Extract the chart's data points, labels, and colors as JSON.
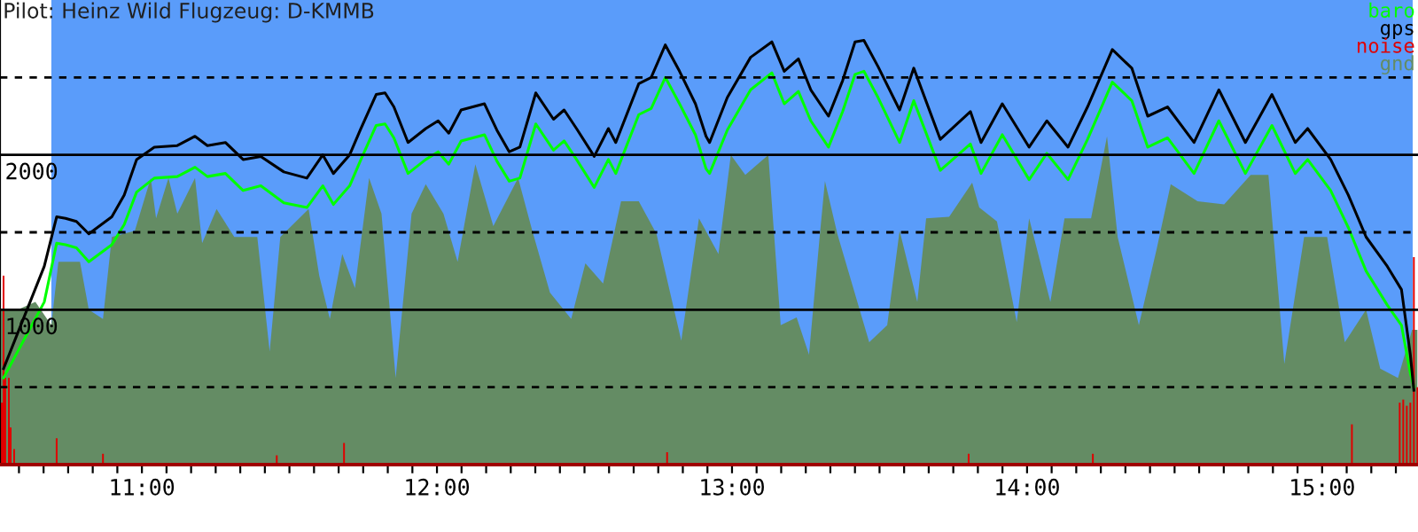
{
  "chart_data": {
    "type": "line",
    "title": "Pilot: Heinz Wild Flugzeug: D-KMMB",
    "xlim": [
      10.519,
      15.325
    ],
    "ylim": [
      0,
      3000
    ],
    "yticks": [
      {
        "value": 500,
        "label": null
      },
      1000,
      {
        "value": 1500,
        "label": null
      },
      2000,
      {
        "value": 2500,
        "label": null
      }
    ],
    "xticks": [
      {
        "value": 10.5833,
        "label": null
      },
      {
        "value": 10.6667,
        "label": null
      },
      {
        "value": 10.75,
        "label": null
      },
      {
        "value": 10.8333,
        "label": null
      },
      {
        "value": 10.9167,
        "label": null
      },
      {
        "value": 11,
        "label": "11:00"
      },
      {
        "value": 11.0833,
        "label": null
      },
      {
        "value": 11.1667,
        "label": null
      },
      {
        "value": 11.25,
        "label": null
      },
      {
        "value": 11.3333,
        "label": null
      },
      {
        "value": 11.4167,
        "label": null
      },
      {
        "value": 11.5,
        "label": null
      },
      {
        "value": 11.5833,
        "label": null
      },
      {
        "value": 11.6667,
        "label": null
      },
      {
        "value": 11.75,
        "label": null
      },
      {
        "value": 11.8333,
        "label": null
      },
      {
        "value": 11.9167,
        "label": null
      },
      {
        "value": 12,
        "label": "12:00"
      },
      {
        "value": 12.0833,
        "label": null
      },
      {
        "value": 12.1667,
        "label": null
      },
      {
        "value": 12.25,
        "label": null
      },
      {
        "value": 12.3333,
        "label": null
      },
      {
        "value": 12.4167,
        "label": null
      },
      {
        "value": 12.5,
        "label": null
      },
      {
        "value": 12.5833,
        "label": null
      },
      {
        "value": 12.6667,
        "label": null
      },
      {
        "value": 12.75,
        "label": null
      },
      {
        "value": 12.8333,
        "label": null
      },
      {
        "value": 12.9167,
        "label": null
      },
      {
        "value": 13,
        "label": "13:00"
      },
      {
        "value": 13.0833,
        "label": null
      },
      {
        "value": 13.1667,
        "label": null
      },
      {
        "value": 13.25,
        "label": null
      },
      {
        "value": 13.3333,
        "label": null
      },
      {
        "value": 13.4167,
        "label": null
      },
      {
        "value": 13.5,
        "label": null
      },
      {
        "value": 13.5833,
        "label": null
      },
      {
        "value": 13.6667,
        "label": null
      },
      {
        "value": 13.75,
        "label": null
      },
      {
        "value": 13.8333,
        "label": null
      },
      {
        "value": 13.9167,
        "label": null
      },
      {
        "value": 14,
        "label": "14:00"
      },
      {
        "value": 14.0833,
        "label": null
      },
      {
        "value": 14.1667,
        "label": null
      },
      {
        "value": 14.25,
        "label": null
      },
      {
        "value": 14.3333,
        "label": null
      },
      {
        "value": 14.4167,
        "label": null
      },
      {
        "value": 14.5,
        "label": null
      },
      {
        "value": 14.5833,
        "label": null
      },
      {
        "value": 14.6667,
        "label": null
      },
      {
        "value": 14.75,
        "label": null
      },
      {
        "value": 14.8333,
        "label": null
      },
      {
        "value": 14.9167,
        "label": null
      },
      {
        "value": 15,
        "label": "15:00"
      },
      {
        "value": 15.0833,
        "label": null
      },
      {
        "value": 15.1667,
        "label": null
      },
      {
        "value": 15.25,
        "label": null
      }
    ],
    "grid": "y",
    "legend": "top right",
    "bands": [
      {
        "axis": "x",
        "from": 10.693,
        "to": 15.307,
        "label": null,
        "color": "#5a9cfa"
      }
    ],
    "series": [
      {
        "name": "baro",
        "type": "line",
        "color": "#00ff00",
        "x": [
          10.531,
          10.669,
          10.711,
          10.741,
          10.778,
          10.82,
          10.898,
          10.94,
          10.982,
          11.042,
          11.12,
          11.18,
          11.222,
          11.283,
          11.343,
          11.403,
          11.481,
          11.559,
          11.613,
          11.649,
          11.704,
          11.74,
          11.794,
          11.824,
          11.854,
          11.902,
          11.962,
          12.004,
          12.04,
          12.082,
          12.161,
          12.203,
          12.245,
          12.281,
          12.335,
          12.395,
          12.431,
          12.473,
          12.533,
          12.581,
          12.606,
          12.684,
          12.726,
          12.774,
          12.822,
          12.876,
          12.912,
          12.924,
          12.984,
          13.063,
          13.135,
          13.177,
          13.225,
          13.267,
          13.327,
          13.375,
          13.417,
          13.447,
          13.495,
          13.568,
          13.616,
          13.706,
          13.808,
          13.844,
          13.916,
          14.007,
          14.067,
          14.139,
          14.205,
          14.289,
          14.355,
          14.409,
          14.476,
          14.566,
          14.65,
          14.74,
          14.83,
          14.909,
          14.951,
          15.029,
          15.089,
          15.149,
          15.221,
          15.269,
          15.299,
          15.311
        ],
        "values": [
          560,
          1050,
          1430,
          1420,
          1400,
          1310,
          1420,
          1550,
          1760,
          1850,
          1860,
          1920,
          1860,
          1880,
          1770,
          1800,
          1690,
          1660,
          1800,
          1680,
          1800,
          1960,
          2190,
          2200,
          2110,
          1880,
          1970,
          2020,
          1940,
          2090,
          2130,
          1960,
          1830,
          1850,
          2200,
          2030,
          2090,
          1970,
          1790,
          1970,
          1880,
          2260,
          2300,
          2500,
          2330,
          2130,
          1910,
          1880,
          2160,
          2420,
          2530,
          2330,
          2410,
          2220,
          2050,
          2280,
          2520,
          2540,
          2370,
          2080,
          2350,
          1900,
          2070,
          1880,
          2130,
          1840,
          2010,
          1840,
          2100,
          2470,
          2350,
          2050,
          2110,
          1880,
          2220,
          1880,
          2190,
          1880,
          1970,
          1770,
          1530,
          1250,
          1030,
          900,
          590,
          500
        ]
      },
      {
        "name": "gps",
        "type": "line",
        "color": "#000000",
        "x": [
          10.531,
          10.669,
          10.711,
          10.741,
          10.778,
          10.82,
          10.898,
          10.94,
          10.982,
          11.042,
          11.12,
          11.18,
          11.222,
          11.283,
          11.343,
          11.403,
          11.481,
          11.559,
          11.613,
          11.649,
          11.704,
          11.74,
          11.794,
          11.824,
          11.854,
          11.902,
          11.962,
          12.004,
          12.04,
          12.082,
          12.161,
          12.203,
          12.245,
          12.281,
          12.335,
          12.395,
          12.431,
          12.473,
          12.533,
          12.581,
          12.606,
          12.684,
          12.726,
          12.774,
          12.822,
          12.876,
          12.912,
          12.924,
          12.984,
          13.063,
          13.135,
          13.177,
          13.225,
          13.267,
          13.327,
          13.375,
          13.417,
          13.447,
          13.495,
          13.568,
          13.616,
          13.706,
          13.808,
          13.844,
          13.916,
          14.007,
          14.067,
          14.139,
          14.205,
          14.289,
          14.355,
          14.409,
          14.476,
          14.566,
          14.65,
          14.74,
          14.83,
          14.909,
          14.951,
          15.029,
          15.089,
          15.149,
          15.221,
          15.269,
          15.299,
          15.311
        ],
        "values": [
          620,
          1280,
          1600,
          1590,
          1570,
          1490,
          1600,
          1740,
          1970,
          2050,
          2060,
          2120,
          2060,
          2080,
          1970,
          1990,
          1890,
          1850,
          2000,
          1880,
          2000,
          2160,
          2390,
          2400,
          2310,
          2080,
          2170,
          2220,
          2140,
          2290,
          2330,
          2160,
          2020,
          2050,
          2400,
          2230,
          2290,
          2170,
          1990,
          2170,
          2080,
          2460,
          2500,
          2710,
          2540,
          2330,
          2120,
          2080,
          2370,
          2630,
          2730,
          2540,
          2620,
          2420,
          2250,
          2480,
          2730,
          2740,
          2570,
          2290,
          2560,
          2100,
          2280,
          2080,
          2330,
          2050,
          2220,
          2050,
          2310,
          2680,
          2560,
          2250,
          2310,
          2080,
          2420,
          2080,
          2390,
          2080,
          2170,
          1970,
          1740,
          1470,
          1280,
          1130,
          710,
          480
        ]
      },
      {
        "name": "noise",
        "type": "bar",
        "color": "#e00000",
        "x": [
          10.525,
          10.531,
          10.537,
          10.549,
          10.555,
          10.567,
          10.711,
          10.868,
          11.457,
          11.685,
          12.78,
          13.802,
          14.223,
          15.101,
          15.263,
          15.275,
          15.287,
          15.299,
          15.311,
          15.323
        ],
        "values": [
          400,
          1220,
          560,
          560,
          240,
          100,
          170,
          70,
          60,
          140,
          80,
          70,
          70,
          260,
          400,
          420,
          380,
          400,
          1340,
          500
        ]
      },
      {
        "name": "gnd",
        "type": "area",
        "color": "#648c64",
        "x": [
          10.519,
          10.579,
          10.639,
          10.693,
          10.717,
          10.79,
          10.82,
          10.868,
          10.898,
          10.976,
          11.03,
          11.048,
          11.09,
          11.12,
          11.18,
          11.204,
          11.253,
          11.313,
          11.391,
          11.433,
          11.469,
          11.565,
          11.601,
          11.637,
          11.679,
          11.722,
          11.77,
          11.812,
          11.86,
          11.914,
          11.962,
          12.022,
          12.07,
          12.13,
          12.191,
          12.275,
          12.323,
          12.383,
          12.455,
          12.503,
          12.563,
          12.624,
          12.684,
          12.744,
          12.828,
          12.888,
          12.954,
          12.996,
          13.045,
          13.123,
          13.165,
          13.219,
          13.261,
          13.297,
          13.315,
          13.357,
          13.465,
          13.526,
          13.568,
          13.628,
          13.658,
          13.736,
          13.814,
          13.838,
          13.898,
          13.965,
          14.007,
          14.079,
          14.127,
          14.217,
          14.271,
          14.307,
          14.379,
          14.439,
          14.487,
          14.578,
          14.668,
          14.758,
          14.818,
          14.872,
          14.939,
          15.017,
          15.077,
          15.149,
          15.197,
          15.257,
          15.305,
          15.323
        ],
        "values": [
          1000,
          1000,
          1050,
          900,
          1310,
          1310,
          1000,
          940,
          1470,
          1510,
          1850,
          1590,
          1850,
          1620,
          1850,
          1430,
          1650,
          1470,
          1470,
          730,
          1470,
          1650,
          1220,
          940,
          1360,
          1140,
          1850,
          1620,
          560,
          1620,
          1810,
          1620,
          1310,
          1940,
          1540,
          1850,
          1510,
          1110,
          940,
          1300,
          1170,
          1700,
          1700,
          1490,
          800,
          1590,
          1360,
          2000,
          1870,
          2000,
          900,
          950,
          710,
          1470,
          1830,
          1490,
          790,
          900,
          1510,
          1050,
          1590,
          1600,
          1820,
          1660,
          1570,
          920,
          1590,
          1050,
          1590,
          1590,
          2120,
          1470,
          900,
          1390,
          1810,
          1700,
          1680,
          1870,
          1870,
          650,
          1470,
          1470,
          790,
          1000,
          620,
          560,
          870,
          870
        ]
      }
    ]
  }
}
